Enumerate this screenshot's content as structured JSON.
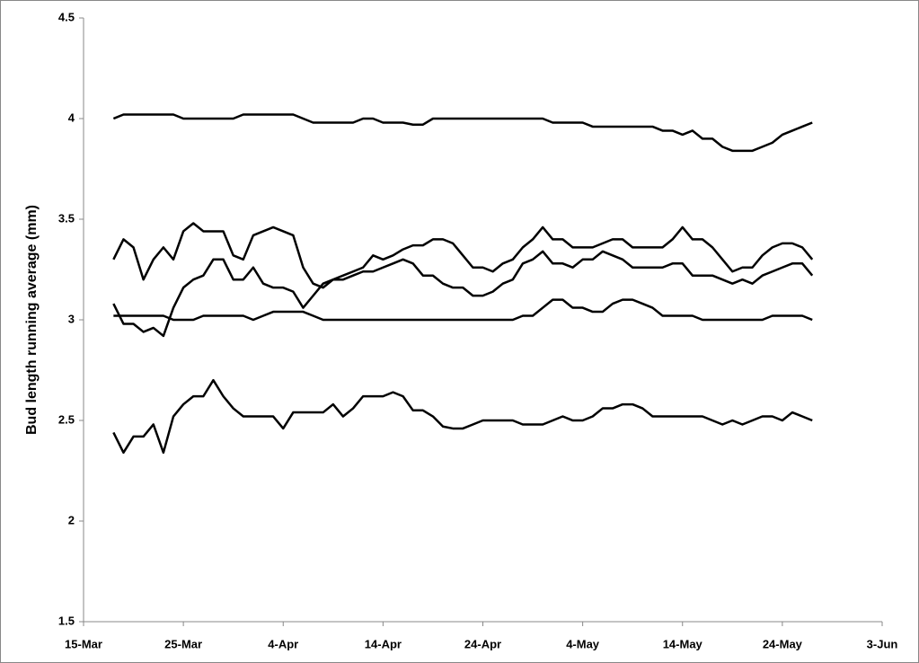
{
  "chart_data": {
    "type": "line",
    "y_label": "Bud length running average (mm)",
    "x": [
      3,
      4,
      5,
      6,
      7,
      8,
      9,
      10,
      11,
      12,
      13,
      14,
      15,
      16,
      17,
      18,
      19,
      20,
      21,
      22,
      23,
      24,
      25,
      26,
      27,
      28,
      29,
      30,
      31,
      32,
      33,
      34,
      35,
      36,
      37,
      38,
      39,
      40,
      41,
      42,
      43,
      44,
      45,
      46,
      47,
      48,
      49,
      50,
      51,
      52,
      53,
      54,
      55,
      56,
      57,
      58,
      59,
      60,
      61,
      62,
      63,
      64,
      65,
      66,
      67,
      68,
      69,
      70,
      71,
      72,
      73
    ],
    "xlim": [
      0,
      80
    ],
    "xticks": [
      {
        "value": 0,
        "label": "15-Mar"
      },
      {
        "value": 10,
        "label": "25-Mar"
      },
      {
        "value": 20,
        "label": "4-Apr"
      },
      {
        "value": 30,
        "label": "14-Apr"
      },
      {
        "value": 40,
        "label": "24-Apr"
      },
      {
        "value": 50,
        "label": "4-May"
      },
      {
        "value": 60,
        "label": "14-May"
      },
      {
        "value": 70,
        "label": "24-May"
      },
      {
        "value": 80,
        "label": "3-Jun"
      }
    ],
    "ylim": [
      1.5,
      4.5
    ],
    "yticks": [
      1.5,
      2,
      2.5,
      3,
      3.5,
      4,
      4.5
    ],
    "grid": false,
    "series": [
      {
        "color": "#000000",
        "values": [
          4.0,
          4.02,
          4.02,
          4.02,
          4.02,
          4.02,
          4.02,
          4.0,
          4.0,
          4.0,
          4.0,
          4.0,
          4.0,
          4.02,
          4.02,
          4.02,
          4.02,
          4.02,
          4.02,
          4.0,
          3.98,
          3.98,
          3.98,
          3.98,
          3.98,
          4.0,
          4.0,
          3.98,
          3.98,
          3.98,
          3.97,
          3.97,
          4.0,
          4.0,
          4.0,
          4.0,
          4.0,
          4.0,
          4.0,
          4.0,
          4.0,
          4.0,
          4.0,
          4.0,
          3.98,
          3.98,
          3.98,
          3.98,
          3.96,
          3.96,
          3.96,
          3.96,
          3.96,
          3.96,
          3.96,
          3.94,
          3.94,
          3.92,
          3.94,
          3.9,
          3.9,
          3.86,
          3.84,
          3.84,
          3.84,
          3.86,
          3.88,
          3.92,
          3.94,
          3.96,
          3.98
        ]
      },
      {
        "color": "#000000",
        "values": [
          3.02,
          3.02,
          3.02,
          3.02,
          3.02,
          3.02,
          3.0,
          3.0,
          3.0,
          3.02,
          3.02,
          3.02,
          3.02,
          3.02,
          3.0,
          3.02,
          3.04,
          3.04,
          3.04,
          3.04,
          3.02,
          3.0,
          3.0,
          3.0,
          3.0,
          3.0,
          3.0,
          3.0,
          3.0,
          3.0,
          3.0,
          3.0,
          3.0,
          3.0,
          3.0,
          3.0,
          3.0,
          3.0,
          3.0,
          3.0,
          3.0,
          3.02,
          3.02,
          3.06,
          3.1,
          3.1,
          3.06,
          3.06,
          3.04,
          3.04,
          3.08,
          3.1,
          3.1,
          3.08,
          3.06,
          3.02,
          3.02,
          3.02,
          3.02,
          3.0,
          3.0,
          3.0,
          3.0,
          3.0,
          3.0,
          3.0,
          3.02,
          3.02,
          3.02,
          3.02,
          3.0
        ]
      },
      {
        "color": "#000000",
        "values": [
          3.3,
          3.4,
          3.36,
          3.2,
          3.3,
          3.36,
          3.3,
          3.44,
          3.48,
          3.44,
          3.44,
          3.44,
          3.32,
          3.3,
          3.42,
          3.44,
          3.46,
          3.44,
          3.42,
          3.26,
          3.18,
          3.16,
          3.2,
          3.22,
          3.24,
          3.26,
          3.32,
          3.3,
          3.32,
          3.35,
          3.37,
          3.37,
          3.4,
          3.4,
          3.38,
          3.32,
          3.26,
          3.26,
          3.24,
          3.28,
          3.3,
          3.36,
          3.4,
          3.46,
          3.4,
          3.4,
          3.36,
          3.36,
          3.36,
          3.38,
          3.4,
          3.4,
          3.36,
          3.36,
          3.36,
          3.36,
          3.4,
          3.46,
          3.4,
          3.4,
          3.36,
          3.3,
          3.24,
          3.26,
          3.26,
          3.32,
          3.36,
          3.38,
          3.38,
          3.36,
          3.3
        ]
      },
      {
        "color": "#000000",
        "values": [
          3.08,
          2.98,
          2.98,
          2.94,
          2.96,
          2.92,
          3.06,
          3.16,
          3.2,
          3.22,
          3.3,
          3.3,
          3.2,
          3.2,
          3.26,
          3.18,
          3.16,
          3.16,
          3.14,
          3.06,
          3.12,
          3.18,
          3.2,
          3.2,
          3.22,
          3.24,
          3.24,
          3.26,
          3.28,
          3.3,
          3.28,
          3.22,
          3.22,
          3.18,
          3.16,
          3.16,
          3.12,
          3.12,
          3.14,
          3.18,
          3.2,
          3.28,
          3.3,
          3.34,
          3.28,
          3.28,
          3.26,
          3.3,
          3.3,
          3.34,
          3.32,
          3.3,
          3.26,
          3.26,
          3.26,
          3.26,
          3.28,
          3.28,
          3.22,
          3.22,
          3.22,
          3.2,
          3.18,
          3.2,
          3.18,
          3.22,
          3.24,
          3.26,
          3.28,
          3.28,
          3.22
        ]
      },
      {
        "color": "#000000",
        "values": [
          2.44,
          2.34,
          2.42,
          2.42,
          2.48,
          2.34,
          2.52,
          2.58,
          2.62,
          2.62,
          2.7,
          2.62,
          2.56,
          2.52,
          2.52,
          2.52,
          2.52,
          2.46,
          2.54,
          2.54,
          2.54,
          2.54,
          2.58,
          2.52,
          2.56,
          2.62,
          2.62,
          2.62,
          2.64,
          2.62,
          2.55,
          2.55,
          2.52,
          2.47,
          2.46,
          2.46,
          2.48,
          2.5,
          2.5,
          2.5,
          2.5,
          2.48,
          2.48,
          2.48,
          2.5,
          2.52,
          2.5,
          2.5,
          2.52,
          2.56,
          2.56,
          2.58,
          2.58,
          2.56,
          2.52,
          2.52,
          2.52,
          2.52,
          2.52,
          2.52,
          2.5,
          2.48,
          2.5,
          2.48,
          2.5,
          2.52,
          2.52,
          2.5,
          2.54,
          2.52,
          2.5
        ]
      }
    ]
  }
}
